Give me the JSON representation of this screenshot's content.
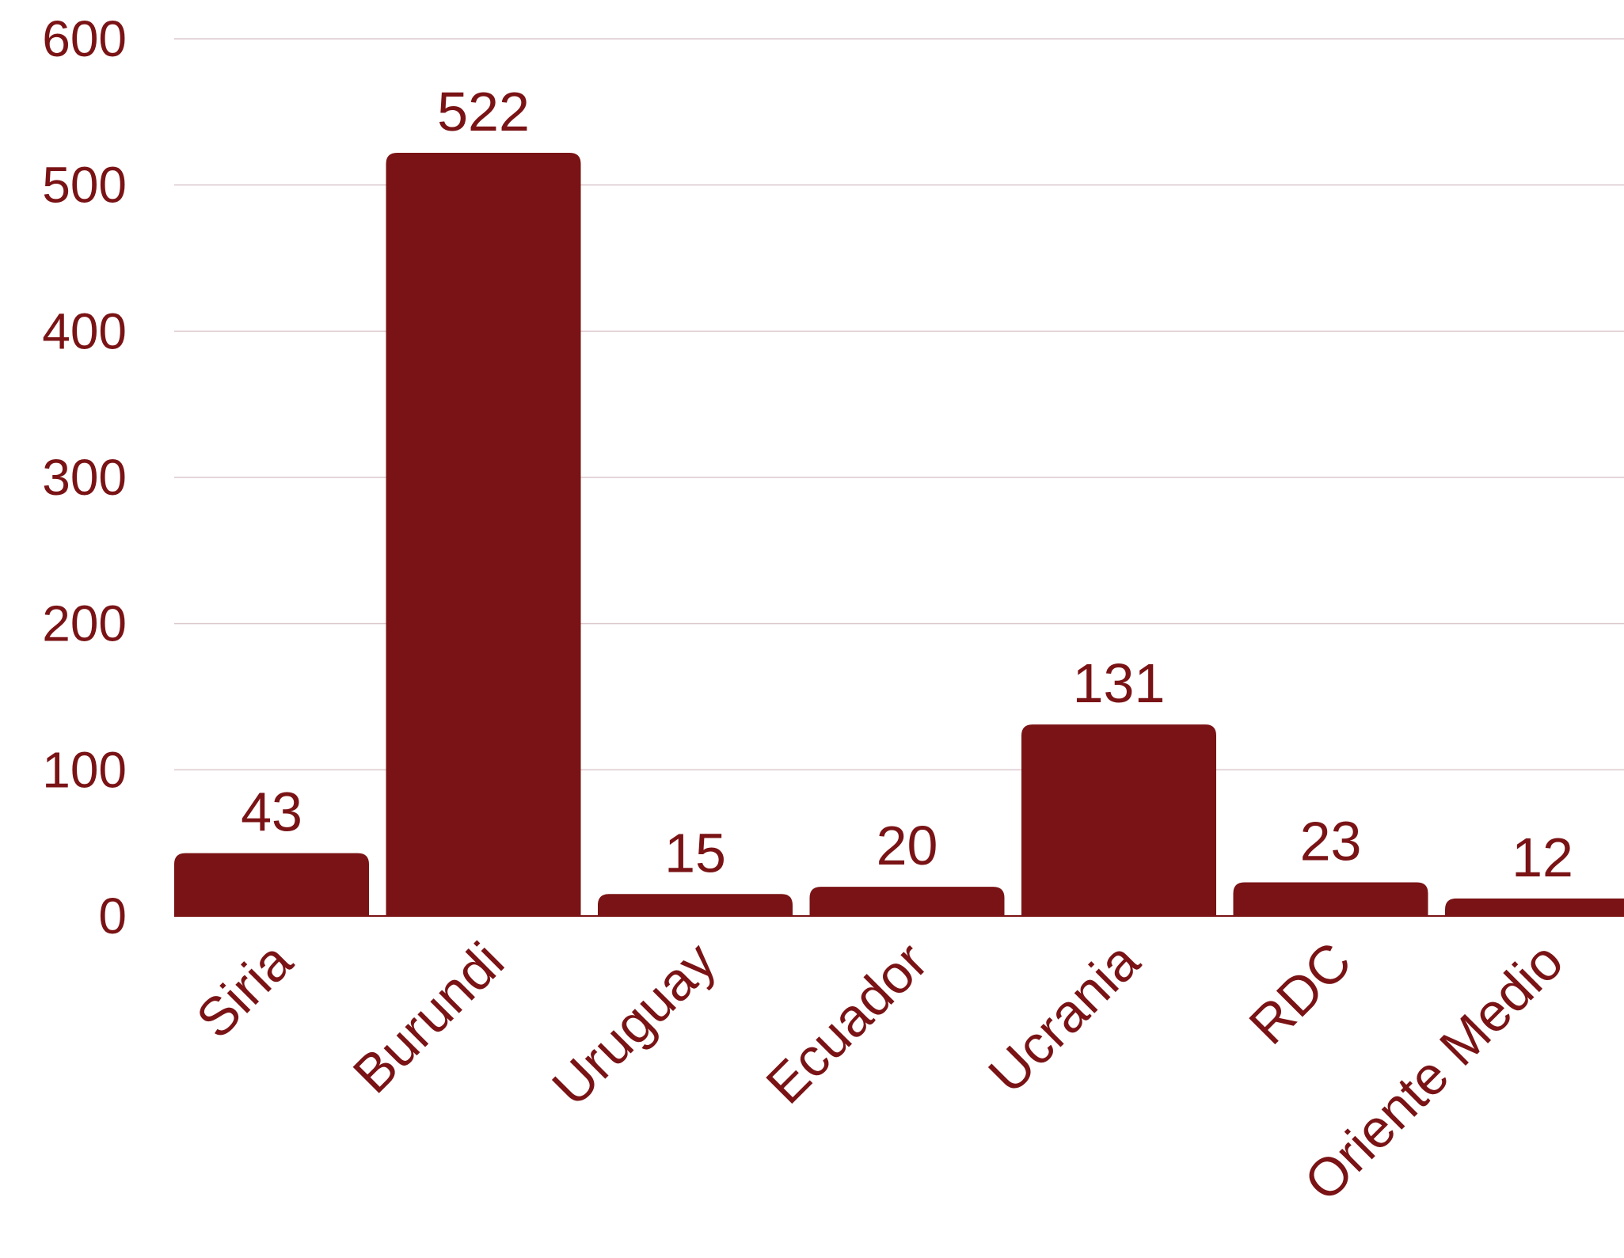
{
  "colors": {
    "bar": "#7a1315",
    "text": "#7a1315",
    "grid": "#dcc9ce",
    "baseline": "#7a1315",
    "background": "#ffffff"
  },
  "chart_data": {
    "type": "bar",
    "categories": [
      "Siria",
      "Burundi",
      "Uruguay",
      "Ecuador",
      "Ucrania",
      "RDC",
      "Oriente Medio"
    ],
    "values": [
      43,
      522,
      15,
      20,
      131,
      23,
      12
    ],
    "data_labels": [
      "43",
      "522",
      "15",
      "20",
      "131",
      "23",
      "12"
    ],
    "yticks": [
      0,
      100,
      200,
      300,
      400,
      500,
      600
    ],
    "ylim": [
      0,
      600
    ],
    "grid": true,
    "legend": "none",
    "title": "",
    "xlabel": "",
    "ylabel": ""
  }
}
